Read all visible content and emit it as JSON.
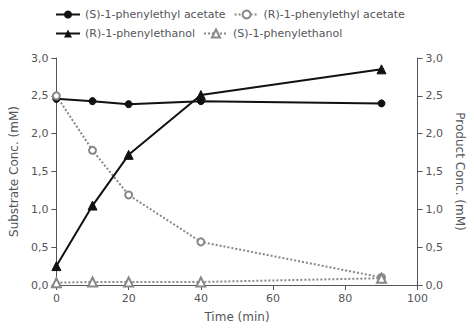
{
  "chart_data": {
    "type": "line",
    "xlabel": "Time (min)",
    "ylabel": "Substrate Conc. (mM)",
    "y2label": "Product Conc. (mM)",
    "x": [
      0,
      10,
      20,
      40,
      90
    ],
    "xlim": [
      0,
      100
    ],
    "xticks": [
      0,
      20,
      40,
      60,
      80,
      100
    ],
    "ylim": [
      0,
      3.0
    ],
    "yticks": [
      {
        "value": 0.0,
        "label": "0,0"
      },
      {
        "value": 0.5,
        "label": "0,5"
      },
      {
        "value": 1.0,
        "label": "1,0"
      },
      {
        "value": 1.5,
        "label": "1,5"
      },
      {
        "value": 2.0,
        "label": "2,0"
      },
      {
        "value": 2.5,
        "label": "2,5"
      },
      {
        "value": 3.0,
        "label": "3,0"
      }
    ],
    "y2lim": [
      0,
      3.0
    ],
    "y2ticks": [
      {
        "value": 0.0,
        "label": "0,0"
      },
      {
        "value": 0.5,
        "label": "0,5"
      },
      {
        "value": 1.0,
        "label": "1,0"
      },
      {
        "value": 1.5,
        "label": "1,5"
      },
      {
        "value": 2.0,
        "label": "2,0"
      },
      {
        "value": 2.5,
        "label": "2,5"
      },
      {
        "value": 3.0,
        "label": "3,0"
      }
    ],
    "grid": false,
    "legend": "top",
    "series": [
      {
        "name": "(S)-1-phenylethyl acetate",
        "values": [
          2.46,
          2.43,
          2.39,
          2.43,
          2.4
        ],
        "color": "#111111",
        "marker": "circle",
        "line_style": "solid",
        "axis": "y"
      },
      {
        "name": "(R)-1-phenylethyl acetate",
        "values": [
          2.5,
          1.78,
          1.19,
          0.57,
          0.1
        ],
        "color": "#888888",
        "marker": "open_circle",
        "line_style": "dotted",
        "axis": "y"
      },
      {
        "name": "(R)-1-phenylethanol",
        "values": [
          0.25,
          1.05,
          1.72,
          2.51,
          2.85
        ],
        "color": "#111111",
        "marker": "triangle",
        "line_style": "solid",
        "axis": "y2"
      },
      {
        "name": "(S)-1-phenylethanol",
        "values": [
          0.03,
          0.04,
          0.04,
          0.04,
          0.09
        ],
        "color": "#888888",
        "marker": "open_triangle",
        "line_style": "dotted",
        "axis": "y2"
      }
    ]
  }
}
